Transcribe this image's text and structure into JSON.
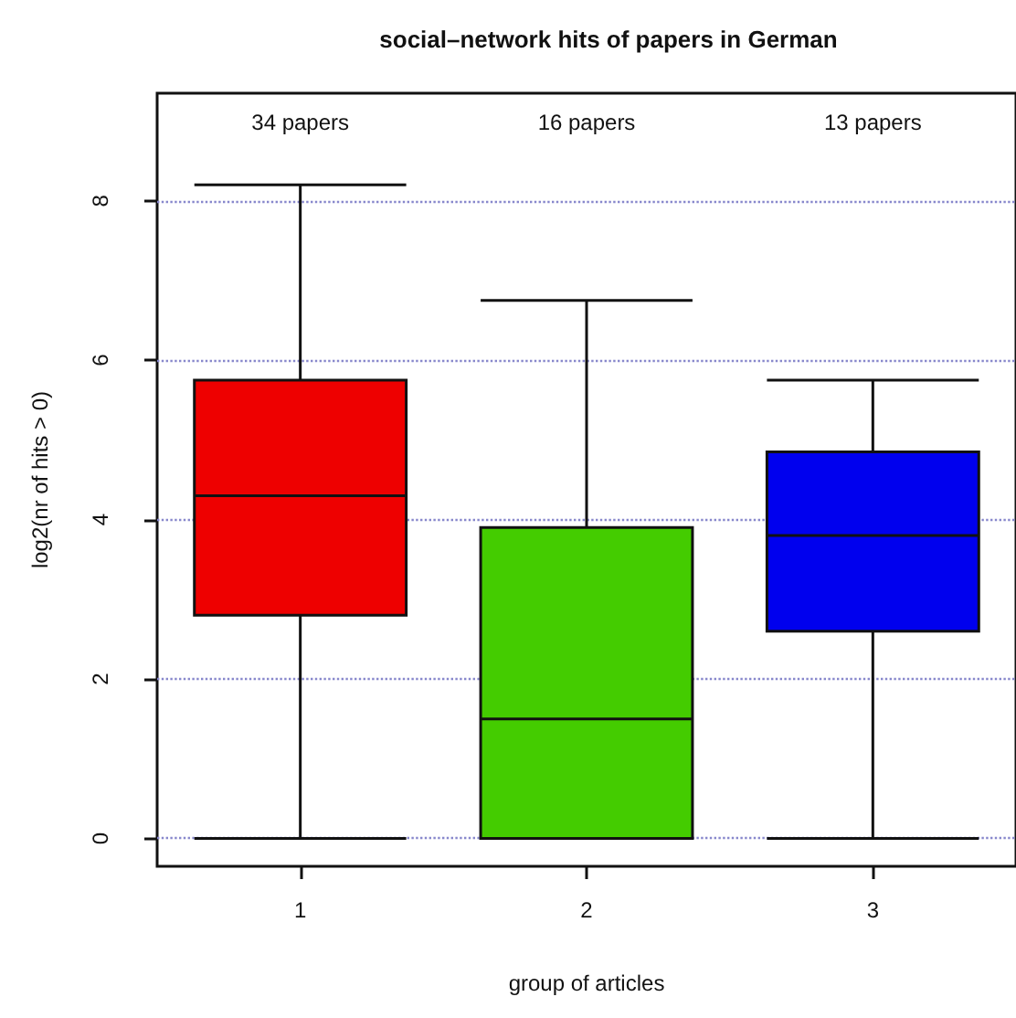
{
  "chart_data": {
    "type": "box",
    "title": "social–network hits of papers in German",
    "xlabel": "group of articles",
    "ylabel": "log2(nr of hits > 0)",
    "categories": [
      "1",
      "2",
      "3"
    ],
    "boxes": [
      {
        "low": 0,
        "q1": 2.8,
        "median": 4.3,
        "q3": 5.75,
        "high": 8.2
      },
      {
        "low": 0,
        "q1": 0,
        "median": 1.5,
        "q3": 3.9,
        "high": 6.75
      },
      {
        "low": 0,
        "q1": 2.6,
        "median": 3.8,
        "q3": 4.85,
        "high": 5.75
      }
    ],
    "colors": [
      "#ee0000",
      "#44cc00",
      "#0000ee"
    ],
    "ylim": [
      -0.35,
      9.35
    ],
    "yticks": [
      0,
      2,
      4,
      6,
      8
    ],
    "grid": "y",
    "annotations": [
      "34 papers",
      "16 papers",
      "13 papers"
    ]
  }
}
